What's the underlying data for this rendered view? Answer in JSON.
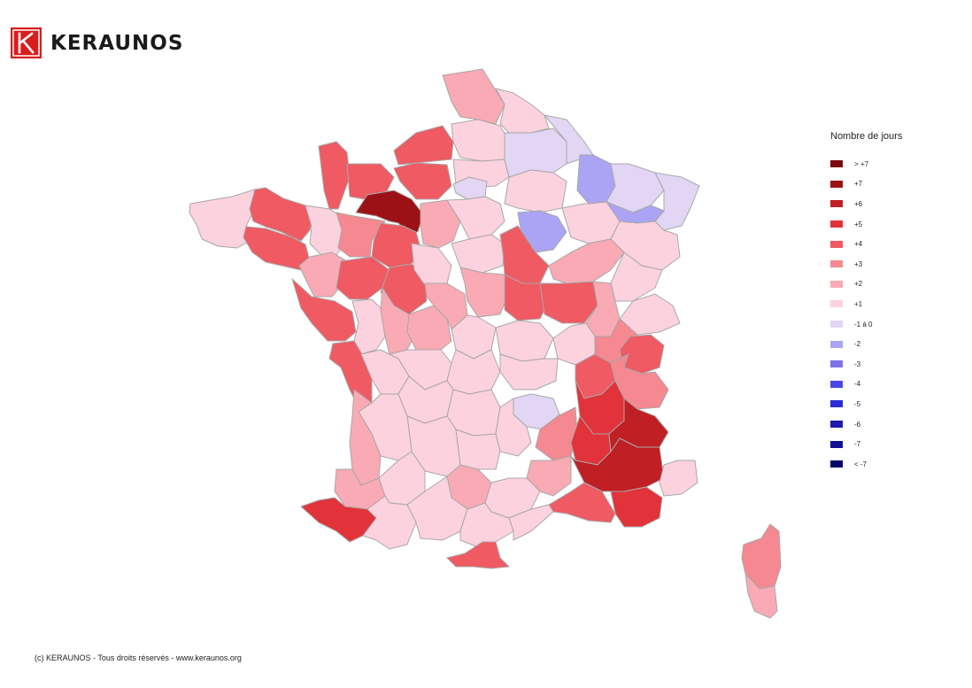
{
  "brand": {
    "name": "KERAUNOS",
    "logo_letter": "K",
    "logo_color": "#d81e1e"
  },
  "legend": {
    "title": "Nombre de jours",
    "items": [
      {
        "label": "> +7",
        "color": "#7b0a0e"
      },
      {
        "label": "+7",
        "color": "#9c1116"
      },
      {
        "label": "+6",
        "color": "#c01f23"
      },
      {
        "label": "+5",
        "color": "#e2323a"
      },
      {
        "label": "+4",
        "color": "#ef5a63"
      },
      {
        "label": "+3",
        "color": "#f58890"
      },
      {
        "label": "+2",
        "color": "#f9aab4"
      },
      {
        "label": "+1",
        "color": "#fcd2de"
      },
      {
        "label": "-1 à 0",
        "color": "#e2d6f4"
      },
      {
        "label": "-2",
        "color": "#aba3f3"
      },
      {
        "label": "-3",
        "color": "#7d72e6"
      },
      {
        "label": "-4",
        "color": "#4747e6"
      },
      {
        "label": "-5",
        "color": "#2b2bd3"
      },
      {
        "label": "-6",
        "color": "#1c1cae"
      },
      {
        "label": "-7",
        "color": "#0f0f94"
      },
      {
        "label": "< -7",
        "color": "#07076b"
      }
    ]
  },
  "footer": "(c) KERAUNOS - Tous droits réservés - www.keraunos.org"
}
